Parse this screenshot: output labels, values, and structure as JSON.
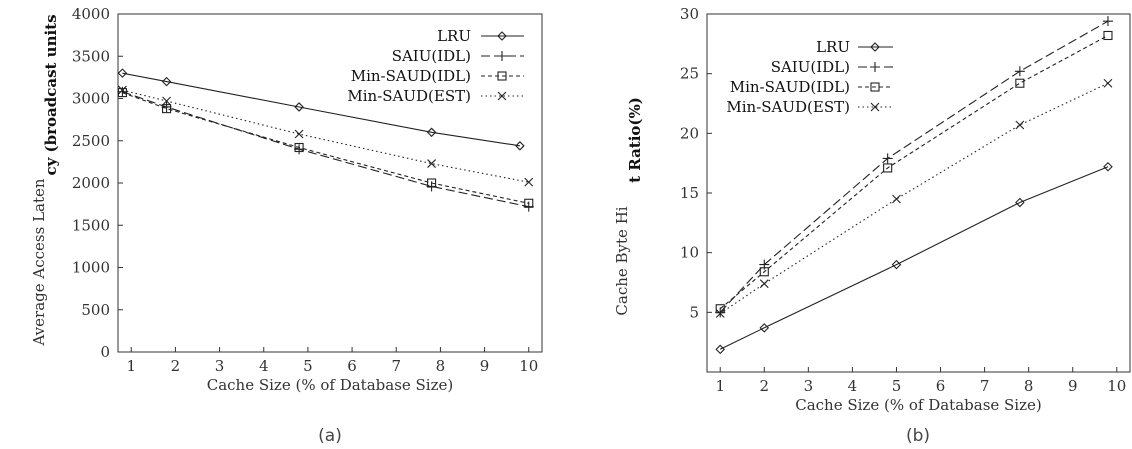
{
  "chart_data": [
    {
      "type": "line",
      "caption": "(a)",
      "xlabel": "Cache Size (% of Database Size)",
      "ylabel_lower": "Average Access Laten",
      "ylabel_upper": "cy (broadcast units",
      "xlim": [
        0.7,
        10.3
      ],
      "ylim": [
        0,
        4000
      ],
      "xticks": [
        "1",
        "2",
        "3",
        "4",
        "5",
        "6",
        "7",
        "8",
        "9",
        "10"
      ],
      "yticks": [
        "0",
        "500",
        "1000",
        "1500",
        "2000",
        "2500",
        "3000",
        "3500",
        "4000"
      ],
      "legend_position": "top-right",
      "series": [
        {
          "name": "LRU",
          "style": "solid",
          "marker": "diamond",
          "x": [
            0.8,
            1.8,
            4.8,
            7.8,
            9.8
          ],
          "y": [
            3300,
            3200,
            2900,
            2600,
            2440
          ]
        },
        {
          "name": "SAIU(IDL)",
          "style": "longdash",
          "marker": "plus",
          "x": [
            0.8,
            1.8,
            4.8,
            7.8,
            10.0
          ],
          "y": [
            3080,
            2900,
            2400,
            1960,
            1720
          ]
        },
        {
          "name": "Min-SAUD(IDL)",
          "style": "shortdash",
          "marker": "square",
          "x": [
            0.8,
            1.8,
            4.8,
            7.8,
            10.0
          ],
          "y": [
            3070,
            2880,
            2420,
            2000,
            1760
          ]
        },
        {
          "name": "Min-SAUD(EST)",
          "style": "dotted",
          "marker": "cross",
          "x": [
            0.8,
            1.8,
            4.8,
            7.8,
            10.0
          ],
          "y": [
            3100,
            2970,
            2580,
            2230,
            2010
          ]
        }
      ]
    },
    {
      "type": "line",
      "caption": "(b)",
      "xlabel": "Cache Size (% of Database Size)",
      "ylabel_lower": "Cache Byte Hi",
      "ylabel_upper": "t Ratio(%)",
      "xlim": [
        0.7,
        10.3
      ],
      "ylim": [
        0,
        30
      ],
      "xticks": [
        "1",
        "2",
        "3",
        "4",
        "5",
        "6",
        "7",
        "8",
        "9",
        "10"
      ],
      "yticks": [
        "5",
        "10",
        "15",
        "20",
        "25",
        "30"
      ],
      "legend_position": "top-left",
      "series": [
        {
          "name": "LRU",
          "style": "solid",
          "marker": "diamond",
          "x": [
            1,
            2,
            5,
            7.8,
            9.8
          ],
          "y": [
            1.9,
            3.7,
            9.0,
            14.2,
            17.2
          ]
        },
        {
          "name": "SAIU(IDL)",
          "style": "longdash",
          "marker": "plus",
          "x": [
            1,
            2,
            4.8,
            7.8,
            9.8
          ],
          "y": [
            5.0,
            9.0,
            17.9,
            25.2,
            29.4
          ]
        },
        {
          "name": "Min-SAUD(IDL)",
          "style": "shortdash",
          "marker": "square",
          "x": [
            1,
            2,
            4.8,
            7.8,
            9.8
          ],
          "y": [
            5.3,
            8.4,
            17.1,
            24.2,
            28.2
          ]
        },
        {
          "name": "Min-SAUD(EST)",
          "style": "dotted",
          "marker": "cross",
          "x": [
            1,
            2,
            5,
            7.8,
            9.8
          ],
          "y": [
            4.9,
            7.4,
            14.5,
            20.7,
            24.2
          ]
        }
      ]
    }
  ]
}
